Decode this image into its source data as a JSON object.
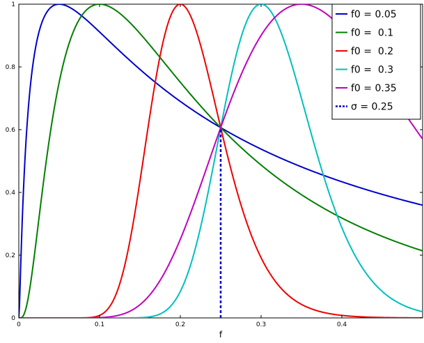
{
  "chart_data": {
    "type": "line",
    "title": "",
    "xlabel": "f",
    "ylabel": "",
    "xlim": [
      0,
      0.5
    ],
    "ylim": [
      0,
      1
    ],
    "grid": false,
    "legend_position": "top-right",
    "x_ticks": [
      0,
      0.1,
      0.2,
      0.3,
      0.4
    ],
    "x_tick_labels": [
      "0",
      "0.1",
      "0.2",
      "0.3",
      "0.4"
    ],
    "y_ticks": [
      0,
      0.2,
      0.4,
      0.6,
      0.8,
      1
    ],
    "y_tick_labels": [
      "0",
      "0.2",
      "0.4",
      "0.6",
      "0.8",
      "1"
    ],
    "sigma": 0.25,
    "series": [
      {
        "name": "f0 = 0.05",
        "f0": 0.05,
        "color": "#0000cc"
      },
      {
        "name": "f0 =  0.1",
        "f0": 0.1,
        "color": "#007f00"
      },
      {
        "name": "f0 =  0.2",
        "f0": 0.2,
        "color": "#ee0000"
      },
      {
        "name": "f0 =  0.3",
        "f0": 0.3,
        "color": "#00bfbf"
      },
      {
        "name": "f0 = 0.35",
        "f0": 0.35,
        "color": "#bf00bf"
      }
    ],
    "vline": {
      "name": "σ = 0.25",
      "x": 0.25,
      "y": [
        0,
        0.6065
      ],
      "color": "#0000cc",
      "style": "dashed"
    }
  }
}
